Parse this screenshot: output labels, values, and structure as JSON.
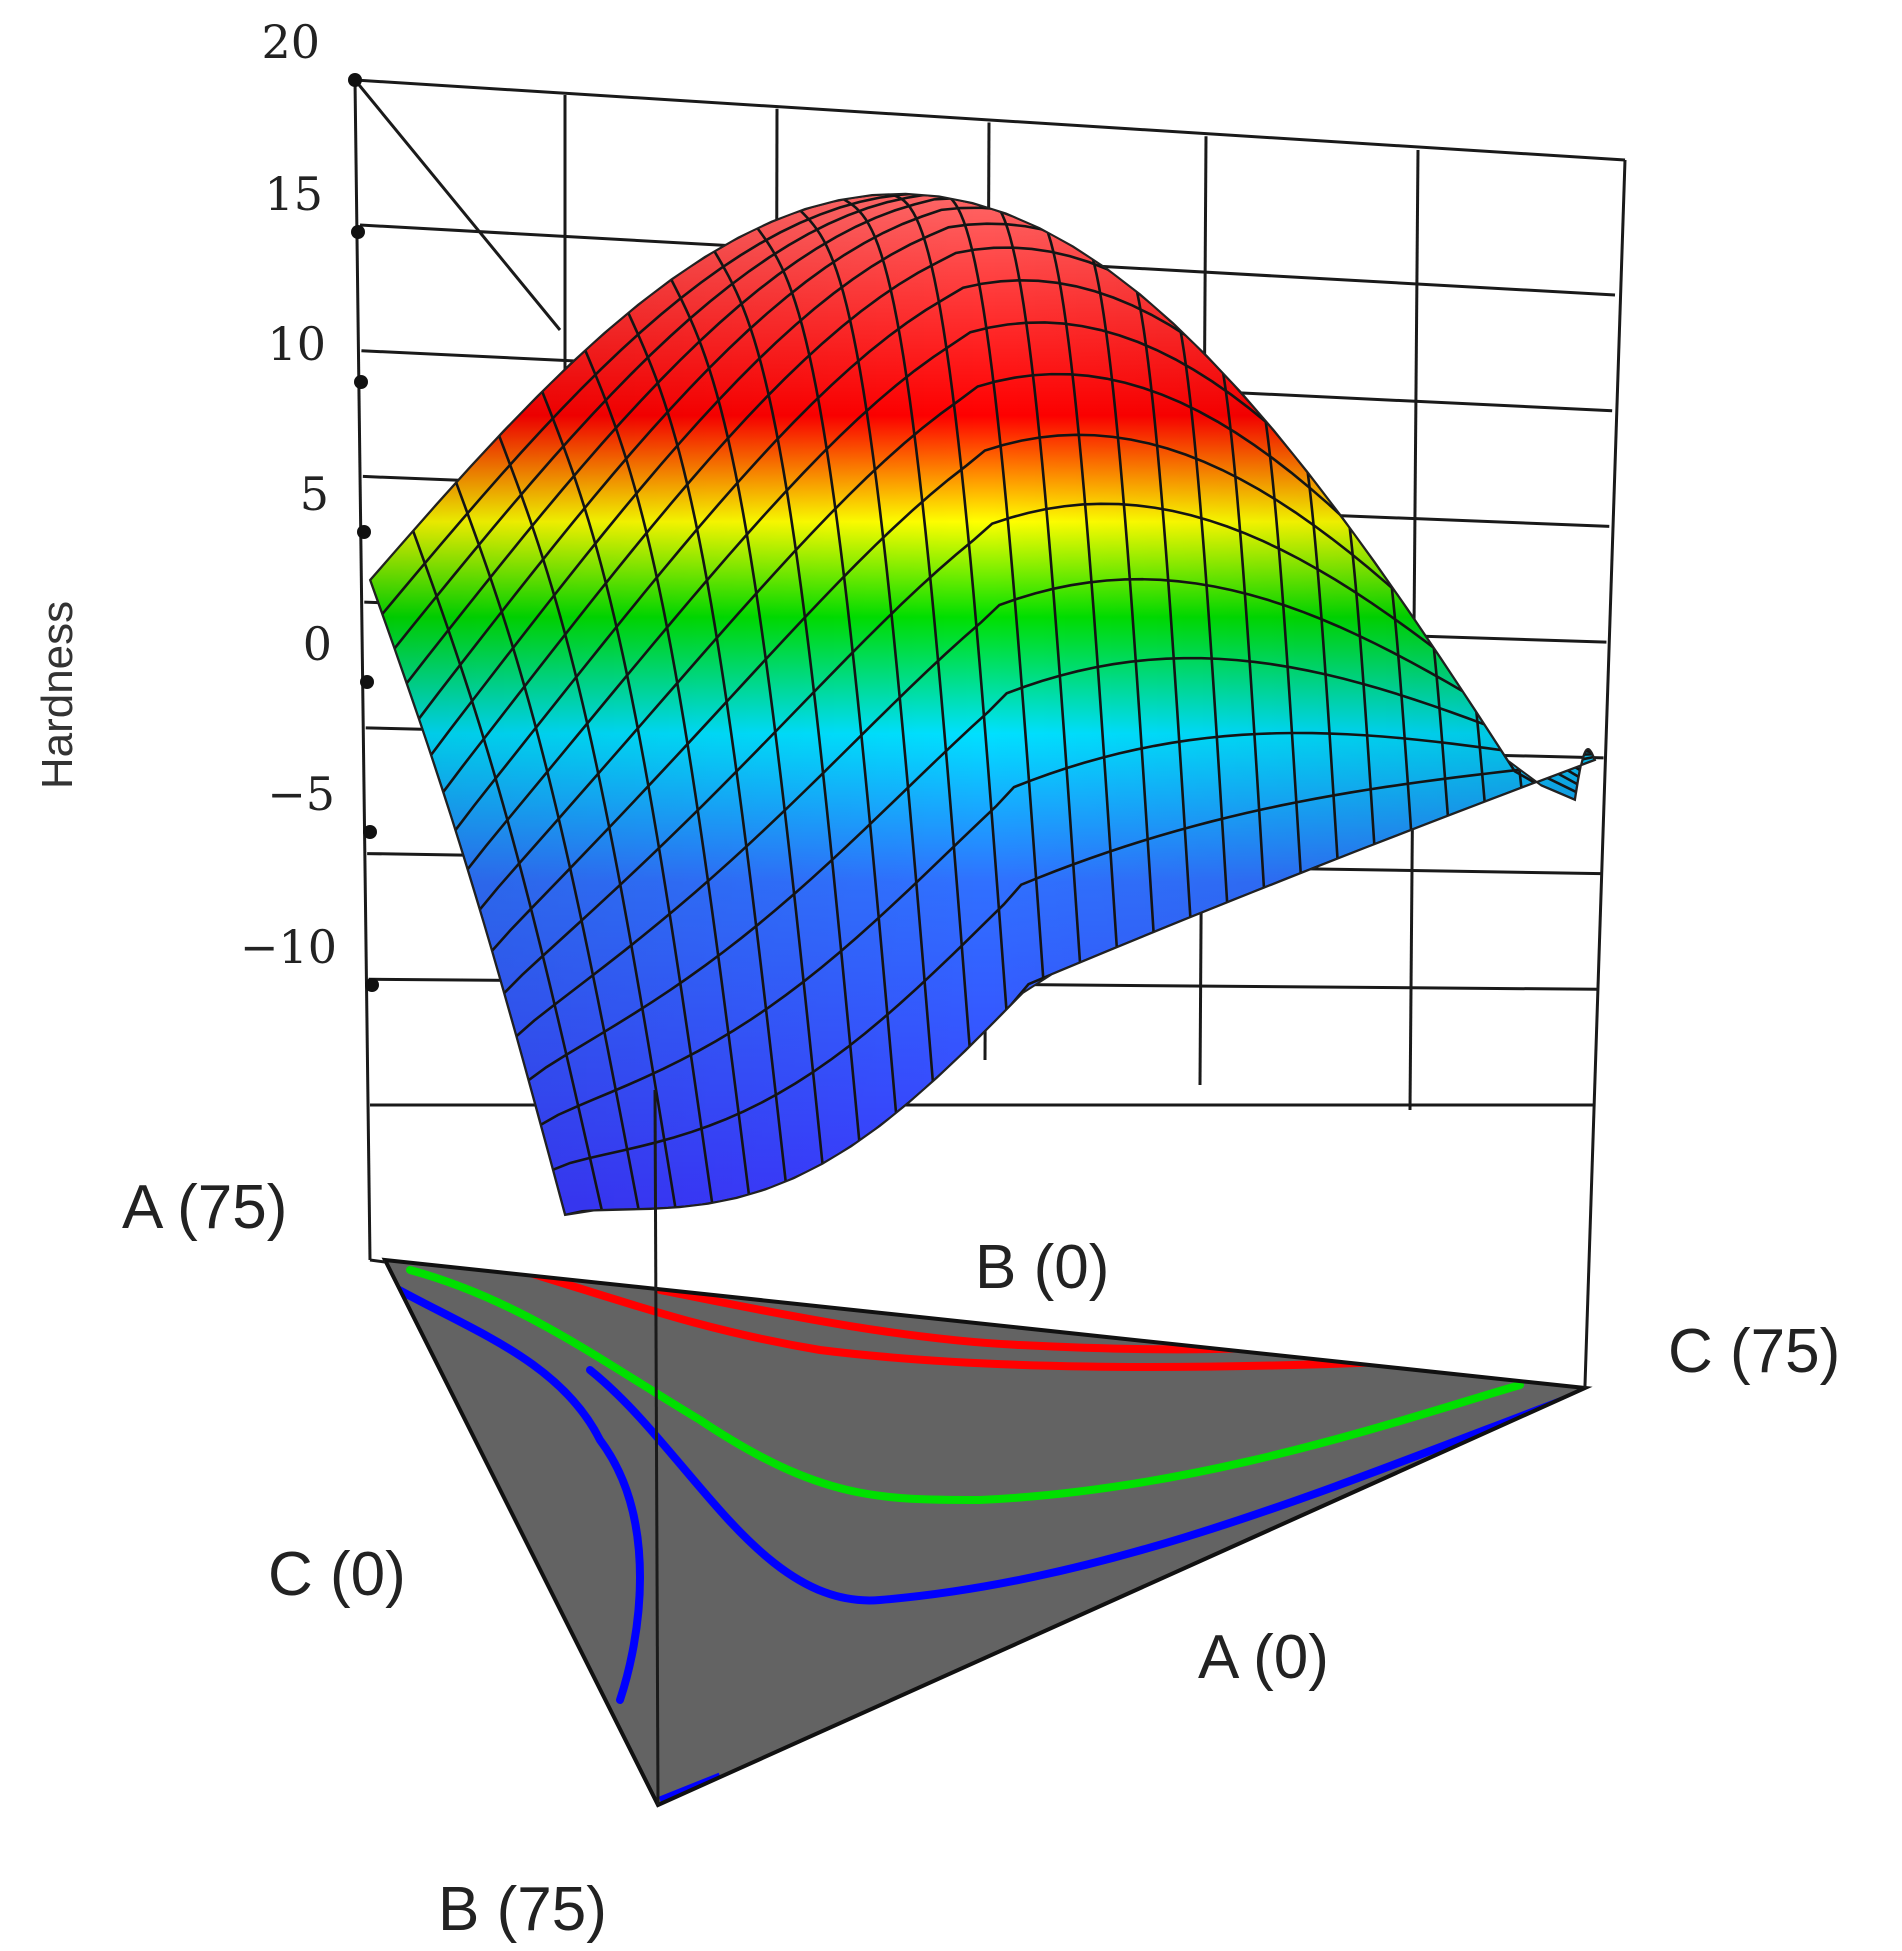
{
  "chart_data": {
    "type": "surface",
    "zlabel": "Hardness",
    "zlim": [
      -10,
      20
    ],
    "z_ticks": [
      "20",
      "15",
      "10",
      "5",
      "0",
      "−5",
      "−10"
    ],
    "components": [
      "A",
      "B",
      "C"
    ],
    "component_range": [
      0,
      75
    ],
    "corner_labels": [
      "A (75)",
      "B (0)",
      "C (75)",
      "C (0)",
      "A (0)",
      "B (75)"
    ],
    "surface_colormap": [
      "#3a3aff",
      "#3070ff",
      "#00e0ff",
      "#00e000",
      "#ffff00",
      "#ff0000",
      "#ff8080"
    ],
    "base_color": "#636363",
    "contours": [
      {
        "color": "#0000ff"
      },
      {
        "color": "#00e000"
      },
      {
        "color": "#ff0000"
      },
      {
        "color": "#ff0000"
      }
    ]
  }
}
